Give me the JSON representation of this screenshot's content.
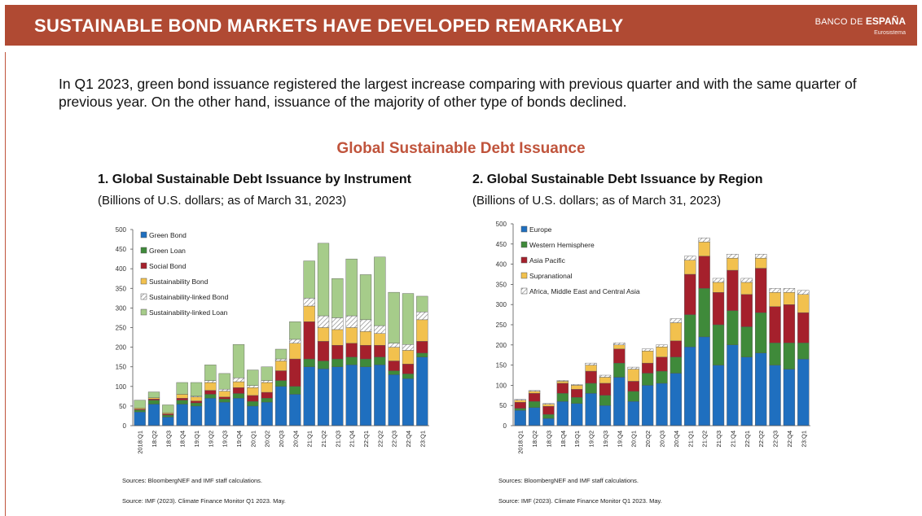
{
  "header": {
    "title": "SUSTAINABLE BOND MARKETS HAVE DEVELOPED REMARKABLY",
    "logo_part1": "BANCO DE ",
    "logo_part2": "ESPAÑA",
    "logo_sub": "Eurosistema"
  },
  "intro_text": "In Q1 2023, green bond issuance registered the largest increase comparing with previous quarter and with the same quarter of previous year.  On the other hand, issuance of the majority of other type of bonds declined.",
  "main_title": "Global Sustainable Debt Issuance",
  "colors": {
    "banner": "#b04a33",
    "accent": "#c0543c",
    "blue": "#1f6fbf",
    "green": "#3f8a3a",
    "red": "#a5202c",
    "yellow": "#f2c14e",
    "light_green": "#a6cc8a"
  },
  "chart_data": [
    {
      "type": "bar",
      "stacked": true,
      "title": "1. Global Sustainable Debt Issuance by Instrument",
      "subtitle": "(Billions of U.S. dollars; as of March 31, 2023)",
      "ylim": [
        0,
        500
      ],
      "yticks": [
        0,
        50,
        100,
        150,
        200,
        250,
        300,
        350,
        400,
        450,
        500
      ],
      "categories": [
        "2018:Q1",
        "18:Q2",
        "18:Q3",
        "18:Q4",
        "19:Q1",
        "19:Q2",
        "19:Q3",
        "19:Q4",
        "20:Q1",
        "20:Q2",
        "20:Q3",
        "20:Q4",
        "21:Q1",
        "21:Q2",
        "21:Q3",
        "21:Q4",
        "22:Q1",
        "22:Q2",
        "22:Q3",
        "22:Q4",
        "23:Q1"
      ],
      "legend_position": "top-left",
      "series": [
        {
          "name": "Green Bond",
          "color": "#1f6fbf",
          "values": [
            35,
            55,
            22,
            55,
            50,
            70,
            60,
            70,
            50,
            60,
            100,
            80,
            150,
            145,
            150,
            155,
            150,
            155,
            130,
            120,
            175
          ]
        },
        {
          "name": "Green Loan",
          "color": "#3f8a3a",
          "values": [
            5,
            10,
            5,
            10,
            8,
            10,
            8,
            12,
            12,
            10,
            15,
            20,
            20,
            20,
            20,
            20,
            20,
            20,
            10,
            12,
            10
          ]
        },
        {
          "name": "Social Bond",
          "color": "#a5202c",
          "values": [
            2,
            3,
            3,
            5,
            5,
            10,
            5,
            15,
            15,
            15,
            25,
            70,
            95,
            50,
            35,
            35,
            35,
            30,
            25,
            25,
            30
          ]
        },
        {
          "name": "Sustainability Bond",
          "color": "#f2c14e",
          "values": [
            3,
            3,
            3,
            10,
            10,
            20,
            15,
            15,
            20,
            25,
            25,
            40,
            40,
            35,
            40,
            40,
            35,
            30,
            35,
            35,
            55
          ]
        },
        {
          "name": "Sustainability-linked Bond",
          "color": "#ffffff",
          "values": [
            0,
            0,
            0,
            0,
            2,
            5,
            5,
            10,
            5,
            5,
            5,
            10,
            20,
            30,
            30,
            30,
            30,
            20,
            10,
            15,
            20
          ]
        },
        {
          "name": "Sustainability-linked Loan",
          "color": "#a6cc8a",
          "values": [
            20,
            15,
            20,
            30,
            35,
            40,
            40,
            85,
            40,
            35,
            25,
            45,
            95,
            185,
            100,
            145,
            115,
            175,
            130,
            130,
            40
          ]
        }
      ]
    },
    {
      "type": "bar",
      "stacked": true,
      "title": "2. Global Sustainable Debt Issuance by Region",
      "subtitle": "(Billions of U.S. dollars; as of March 31, 2023)",
      "ylim": [
        0,
        500
      ],
      "yticks": [
        0,
        50,
        100,
        150,
        200,
        250,
        300,
        350,
        400,
        450,
        500
      ],
      "categories": [
        "2018:Q1",
        "18:Q2",
        "18:Q3",
        "18:Q4",
        "19:Q1",
        "19:Q2",
        "19:Q3",
        "19:Q4",
        "20:Q1",
        "20:Q2",
        "20:Q3",
        "20:Q4",
        "21:Q1",
        "21:Q2",
        "21:Q3",
        "21:Q4",
        "22:Q1",
        "22:Q2",
        "22:Q3",
        "22:Q4",
        "23:Q1"
      ],
      "legend_position": "top-left",
      "series": [
        {
          "name": "Europe",
          "color": "#1f6fbf",
          "values": [
            38,
            45,
            18,
            60,
            55,
            80,
            50,
            120,
            60,
            100,
            105,
            130,
            195,
            220,
            150,
            200,
            170,
            180,
            150,
            140,
            165
          ]
        },
        {
          "name": "Western Hemisphere",
          "color": "#3f8a3a",
          "values": [
            5,
            15,
            10,
            20,
            15,
            25,
            25,
            35,
            25,
            30,
            30,
            40,
            80,
            120,
            100,
            85,
            75,
            100,
            55,
            65,
            40
          ]
        },
        {
          "name": "Asia Pacific",
          "color": "#a5202c",
          "values": [
            15,
            20,
            20,
            25,
            20,
            30,
            30,
            35,
            25,
            25,
            35,
            40,
            100,
            80,
            80,
            100,
            80,
            110,
            90,
            95,
            75
          ]
        },
        {
          "name": "Supranational",
          "color": "#f2c14e",
          "values": [
            5,
            5,
            5,
            5,
            10,
            15,
            15,
            10,
            30,
            30,
            25,
            45,
            35,
            35,
            25,
            30,
            30,
            25,
            35,
            30,
            45
          ]
        },
        {
          "name": "Africa, Middle East and Central Asia",
          "color": "#ffffff",
          "values": [
            2,
            2,
            2,
            2,
            2,
            5,
            5,
            5,
            5,
            5,
            5,
            10,
            10,
            10,
            10,
            10,
            10,
            10,
            10,
            10,
            10
          ]
        }
      ]
    }
  ],
  "sources_note": "Sources: BloombergNEF and IMF staff calculations.",
  "source_line": "Source: IMF (2023). Climate Finance Monitor Q1 2023. May."
}
